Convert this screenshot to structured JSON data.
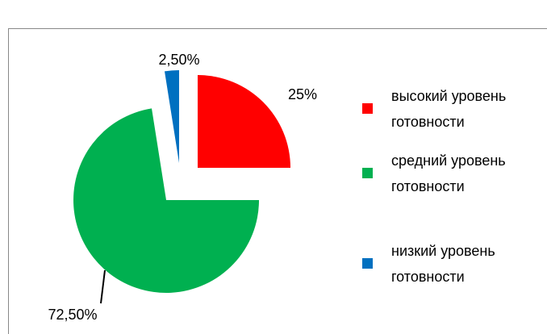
{
  "chart_data": {
    "type": "pie",
    "categories": [
      "высокий уровень готовности",
      "средний уровень готовности",
      "низкий уровень готовности"
    ],
    "values": [
      25,
      72.5,
      2.5
    ],
    "value_labels": [
      "25%",
      "72,50%",
      "2,50%"
    ],
    "colors": [
      "#ff0000",
      "#00b050",
      "#0070c0"
    ],
    "legend": "right"
  }
}
